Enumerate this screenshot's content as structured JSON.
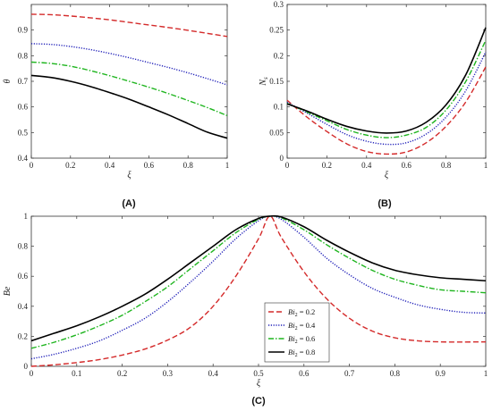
{
  "panels": [
    {
      "label": "(A)"
    },
    {
      "label": "(B)"
    },
    {
      "label": "(C)"
    }
  ],
  "chart_data": [
    {
      "type": "line",
      "panel": "(A)",
      "xlabel": "ξ",
      "ylabel": "θ",
      "xlim": [
        0,
        1
      ],
      "ylim": [
        0.4,
        1.0
      ],
      "xticks": [
        "0",
        "0.2",
        "0.4",
        "0.6",
        "0.8",
        "1"
      ],
      "yticks": [
        "0.4",
        "0.5",
        "0.6",
        "0.7",
        "0.8",
        "0.9"
      ],
      "x": [
        0,
        0.1,
        0.2,
        0.3,
        0.4,
        0.5,
        0.6,
        0.7,
        0.8,
        0.9,
        1.0
      ],
      "series": [
        {
          "style": "dashed",
          "color": "#d42a2a",
          "values": [
            0.962,
            0.96,
            0.955,
            0.948,
            0.94,
            0.93,
            0.92,
            0.91,
            0.899,
            0.887,
            0.875
          ]
        },
        {
          "style": "dotted",
          "color": "#1d1db8",
          "values": [
            0.847,
            0.844,
            0.836,
            0.824,
            0.809,
            0.792,
            0.773,
            0.754,
            0.733,
            0.71,
            0.686
          ]
        },
        {
          "style": "dashdot",
          "color": "#1fb51f",
          "values": [
            0.775,
            0.77,
            0.759,
            0.742,
            0.722,
            0.7,
            0.677,
            0.652,
            0.625,
            0.597,
            0.566
          ]
        },
        {
          "style": "solid",
          "color": "#000000",
          "values": [
            0.723,
            0.715,
            0.7,
            0.68,
            0.656,
            0.63,
            0.6,
            0.569,
            0.535,
            0.501,
            0.478
          ]
        }
      ]
    },
    {
      "type": "line",
      "panel": "(B)",
      "xlabel": "ξ",
      "ylabel": "N_s",
      "xlim": [
        0,
        1
      ],
      "ylim": [
        0,
        0.3
      ],
      "xticks": [
        "0",
        "0.2",
        "0.4",
        "0.6",
        "0.8",
        "1"
      ],
      "yticks": [
        "0",
        "0.05",
        "0.1",
        "0.15",
        "0.2",
        "0.25",
        "0.3"
      ],
      "x": [
        0,
        0.1,
        0.2,
        0.3,
        0.4,
        0.5,
        0.6,
        0.7,
        0.8,
        0.9,
        1.0
      ],
      "series": [
        {
          "style": "dashed",
          "color": "#d42a2a",
          "values": [
            0.113,
            0.08,
            0.052,
            0.028,
            0.013,
            0.008,
            0.012,
            0.03,
            0.062,
            0.11,
            0.178
          ]
        },
        {
          "style": "dotted",
          "color": "#1d1db8",
          "values": [
            0.109,
            0.088,
            0.066,
            0.046,
            0.033,
            0.027,
            0.03,
            0.047,
            0.08,
            0.132,
            0.207
          ]
        },
        {
          "style": "dashdot",
          "color": "#1fb51f",
          "values": [
            0.107,
            0.09,
            0.073,
            0.056,
            0.045,
            0.04,
            0.045,
            0.06,
            0.094,
            0.15,
            0.23
          ]
        },
        {
          "style": "solid",
          "color": "#000000",
          "values": [
            0.106,
            0.092,
            0.076,
            0.062,
            0.053,
            0.049,
            0.053,
            0.07,
            0.104,
            0.163,
            0.255
          ]
        }
      ]
    },
    {
      "type": "line",
      "panel": "(C)",
      "xlabel": "ξ",
      "ylabel": "Be",
      "xlim": [
        0,
        1
      ],
      "ylim": [
        0,
        1
      ],
      "xticks": [
        "0",
        "0.1",
        "0.2",
        "0.3",
        "0.4",
        "0.5",
        "0.6",
        "0.7",
        "0.8",
        "0.9",
        "1"
      ],
      "yticks": [
        "0",
        "0.2",
        "0.4",
        "0.6",
        "0.8",
        "1"
      ],
      "legend_position": "bottom-left",
      "series": [
        {
          "name": "Bi2 = 0.2",
          "legend_var": "Bi",
          "legend_sub": "2",
          "legend_value": " = 0.2",
          "style": "dashed",
          "color": "#d42a2a",
          "x": [
            0,
            0.05,
            0.1,
            0.15,
            0.2,
            0.25,
            0.3,
            0.35,
            0.4,
            0.45,
            0.5,
            0.525,
            0.55,
            0.6,
            0.65,
            0.7,
            0.75,
            0.8,
            0.85,
            0.9,
            0.95,
            1.0
          ],
          "values": [
            0.0,
            0.01,
            0.025,
            0.045,
            0.075,
            0.115,
            0.175,
            0.26,
            0.4,
            0.6,
            0.85,
            1.0,
            0.86,
            0.63,
            0.45,
            0.32,
            0.235,
            0.19,
            0.17,
            0.163,
            0.162,
            0.163
          ]
        },
        {
          "name": "Bi2 = 0.4",
          "legend_var": "Bi",
          "legend_sub": "2",
          "legend_value": " = 0.4",
          "style": "dotted",
          "color": "#1d1db8",
          "x": [
            0,
            0.05,
            0.1,
            0.15,
            0.2,
            0.25,
            0.3,
            0.35,
            0.4,
            0.45,
            0.5,
            0.525,
            0.55,
            0.6,
            0.65,
            0.7,
            0.75,
            0.8,
            0.85,
            0.9,
            0.95,
            1.0
          ],
          "values": [
            0.05,
            0.08,
            0.12,
            0.17,
            0.24,
            0.32,
            0.43,
            0.56,
            0.7,
            0.85,
            0.97,
            1.0,
            0.98,
            0.86,
            0.72,
            0.61,
            0.52,
            0.46,
            0.41,
            0.38,
            0.36,
            0.355
          ]
        },
        {
          "name": "Bi2 = 0.6",
          "legend_var": "Bi",
          "legend_sub": "2",
          "legend_value": " = 0.6",
          "style": "dashdot",
          "color": "#1fb51f",
          "x": [
            0,
            0.05,
            0.1,
            0.15,
            0.2,
            0.25,
            0.3,
            0.35,
            0.4,
            0.45,
            0.5,
            0.525,
            0.55,
            0.6,
            0.65,
            0.7,
            0.75,
            0.8,
            0.85,
            0.9,
            0.95,
            1.0
          ],
          "values": [
            0.12,
            0.16,
            0.21,
            0.27,
            0.34,
            0.43,
            0.53,
            0.65,
            0.77,
            0.89,
            0.98,
            1.0,
            0.99,
            0.91,
            0.81,
            0.72,
            0.64,
            0.58,
            0.54,
            0.51,
            0.5,
            0.49
          ]
        },
        {
          "name": "Bi2 = 0.8",
          "legend_var": "Bi",
          "legend_sub": "2",
          "legend_value": " = 0.8",
          "style": "solid",
          "color": "#000000",
          "x": [
            0,
            0.05,
            0.1,
            0.15,
            0.2,
            0.25,
            0.3,
            0.35,
            0.4,
            0.45,
            0.5,
            0.525,
            0.55,
            0.6,
            0.65,
            0.7,
            0.75,
            0.8,
            0.85,
            0.9,
            0.95,
            1.0
          ],
          "values": [
            0.17,
            0.22,
            0.27,
            0.33,
            0.4,
            0.48,
            0.58,
            0.69,
            0.8,
            0.91,
            0.985,
            1.0,
            0.995,
            0.93,
            0.84,
            0.76,
            0.69,
            0.64,
            0.61,
            0.59,
            0.58,
            0.57
          ]
        }
      ]
    }
  ]
}
